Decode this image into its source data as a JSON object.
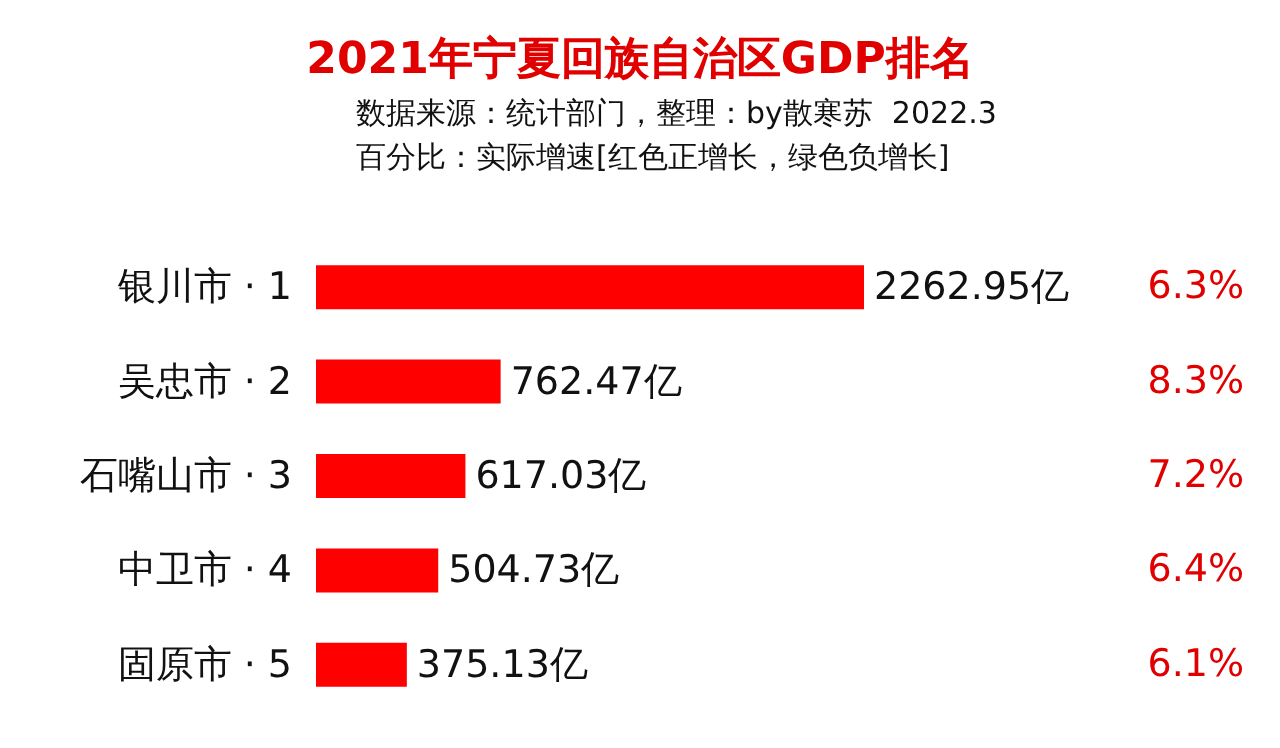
{
  "chart_data": {
    "type": "bar",
    "orientation": "horizontal",
    "title": "2021年宁夏回族自治区GDP排名",
    "subtitle": "数据来源：统计部门，整理：by散寒苏  2022.3",
    "categories": [
      "银川市 · 1",
      "吴忠市 · 2",
      "石嘴山市 · 3",
      "中卫市 · 4",
      "固原市 · 5"
    ],
    "values": [
      2262.95,
      762.47,
      617.03,
      504.73,
      375.13
    ],
    "value_labels": [
      "2262.95亿",
      "762.47亿",
      "617.03亿",
      "504.73亿",
      "375.13亿"
    ],
    "color": "#ff0000",
    "annotations": [
      "百分比：实际增速[红色正增长，绿色负增长]",
      "6.3%",
      "8.3%",
      "7.2%",
      "6.4%",
      "6.1%"
    ]
  }
}
